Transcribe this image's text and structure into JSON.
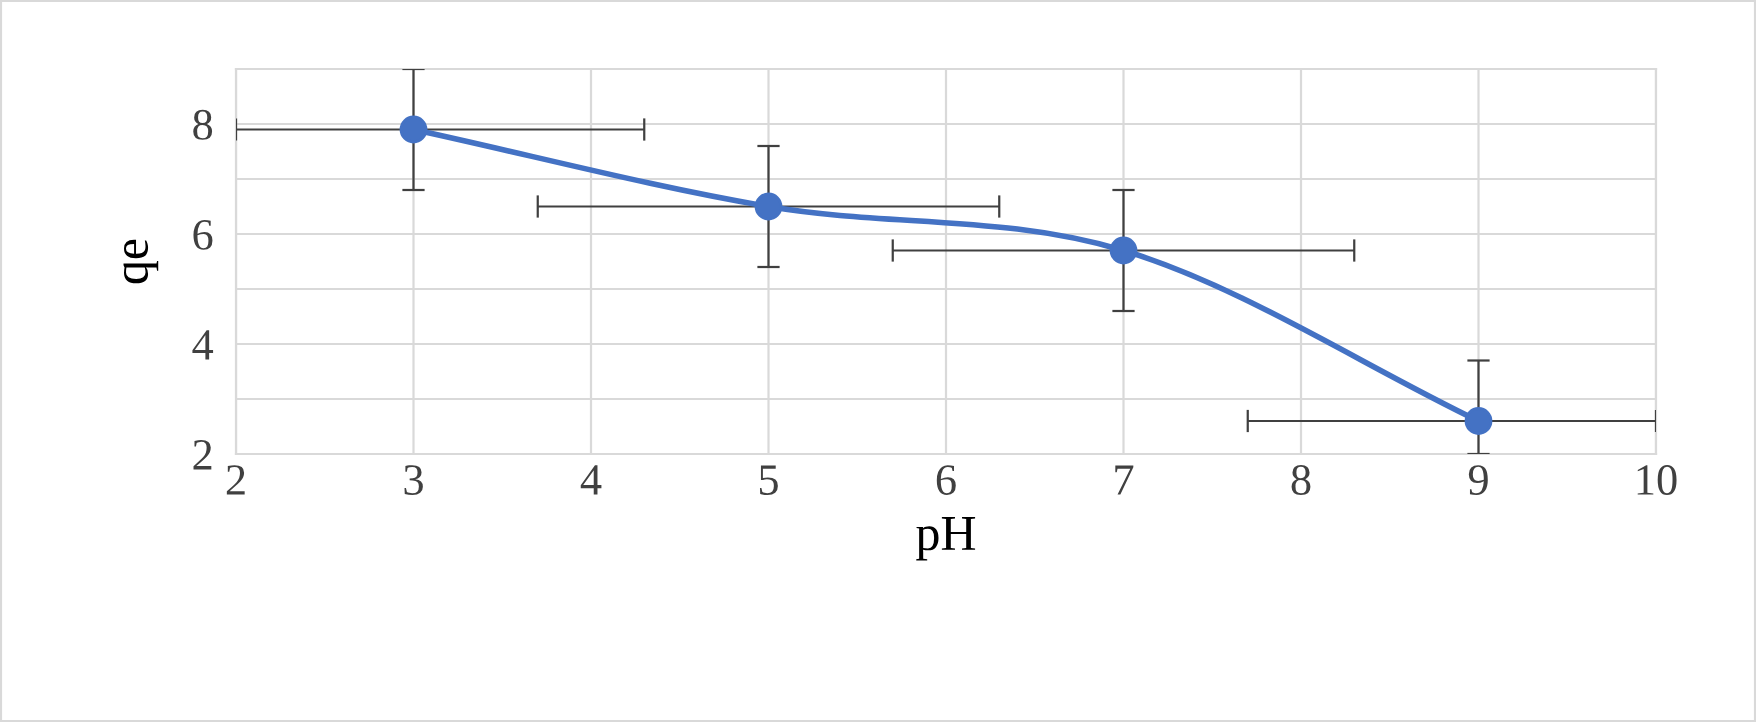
{
  "chart_data": {
    "type": "line",
    "xlabel": "pH",
    "ylabel": "qe",
    "x": [
      3,
      5,
      7,
      9
    ],
    "series": [
      {
        "color": "#4472c4",
        "values": [
          7.9,
          6.5,
          5.7,
          2.6
        ],
        "errors": [
          1.1,
          1.1,
          1.1,
          [
            2.0,
            3.7
          ]
        ],
        "xerrors": [
          [
            2.0,
            4.3
          ],
          1.3,
          1.3,
          [
            7.7,
            10.0
          ]
        ]
      }
    ],
    "xlim": [
      2,
      10
    ],
    "xticks": [
      2,
      3,
      4,
      5,
      6,
      7,
      8,
      9,
      10
    ],
    "ylim": [
      2,
      9
    ],
    "yticks": [
      2,
      4,
      6,
      8
    ],
    "grid": true,
    "marker": "circle",
    "line_style": "solid"
  }
}
